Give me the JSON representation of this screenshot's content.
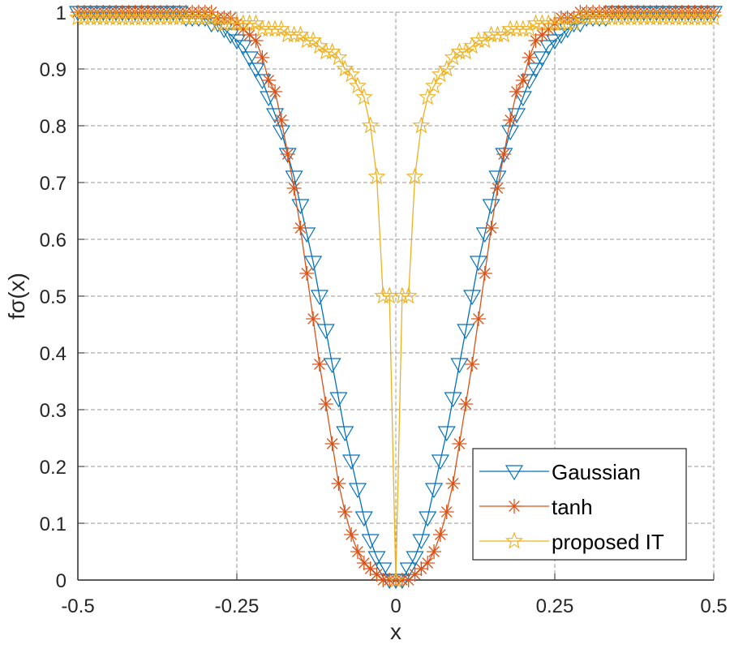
{
  "chart_data": {
    "type": "line",
    "title": "",
    "xlabel": "x",
    "ylabel": "fσ(x)",
    "xlim": [
      -0.5,
      0.5
    ],
    "ylim": [
      0,
      1
    ],
    "grid": true,
    "legend_position": "bottom-right",
    "xticks": [
      -0.5,
      -0.25,
      0,
      0.25,
      0.5
    ],
    "xtick_labels": [
      "-0.5",
      "-0.25",
      "0",
      "0.25",
      "0.5"
    ],
    "yticks": [
      0,
      0.1,
      0.2,
      0.3,
      0.4,
      0.5,
      0.6,
      0.7,
      0.8,
      0.9,
      1
    ],
    "ytick_labels": [
      "0",
      "0.1",
      "0.2",
      "0.3",
      "0.4",
      "0.5",
      "0.6",
      "0.7",
      "0.8",
      "0.9",
      "1"
    ],
    "x": [
      -0.5,
      -0.49,
      -0.48,
      -0.47,
      -0.46,
      -0.45,
      -0.44,
      -0.43,
      -0.42,
      -0.41,
      -0.4,
      -0.39,
      -0.38,
      -0.37,
      -0.36,
      -0.35,
      -0.34,
      -0.33,
      -0.32,
      -0.31,
      -0.3,
      -0.29,
      -0.28,
      -0.27,
      -0.26,
      -0.25,
      -0.24,
      -0.23,
      -0.22,
      -0.21,
      -0.2,
      -0.19,
      -0.18,
      -0.17,
      -0.16,
      -0.15,
      -0.14,
      -0.13,
      -0.12,
      -0.11,
      -0.1,
      -0.09,
      -0.08,
      -0.07,
      -0.06,
      -0.05,
      -0.04,
      -0.03,
      -0.02,
      -0.01,
      0,
      0.01,
      0.02,
      0.03,
      0.04,
      0.05,
      0.06,
      0.07,
      0.08,
      0.09,
      0.1,
      0.11,
      0.12,
      0.13,
      0.14,
      0.15,
      0.16,
      0.17,
      0.18,
      0.19,
      0.2,
      0.21,
      0.22,
      0.23,
      0.24,
      0.25,
      0.26,
      0.27,
      0.28,
      0.29,
      0.3,
      0.31,
      0.32,
      0.33,
      0.34,
      0.35,
      0.36,
      0.37,
      0.38,
      0.39,
      0.4,
      0.41,
      0.42,
      0.43,
      0.44,
      0.45,
      0.46,
      0.47,
      0.48,
      0.49,
      0.5
    ],
    "series": [
      {
        "name": "Gaussian",
        "color": "#0072BD",
        "marker": "triangle-down",
        "values": [
          1.0,
          1.0,
          1.0,
          1.0,
          1.0,
          1.0,
          1.0,
          1.0,
          1.0,
          1.0,
          1.0,
          1.0,
          1.0,
          1.0,
          1.0,
          1.0,
          1.0,
          0.99,
          0.99,
          0.99,
          0.99,
          0.98,
          0.98,
          0.97,
          0.96,
          0.95,
          0.94,
          0.92,
          0.9,
          0.88,
          0.85,
          0.82,
          0.79,
          0.75,
          0.71,
          0.66,
          0.61,
          0.56,
          0.5,
          0.44,
          0.38,
          0.32,
          0.26,
          0.21,
          0.16,
          0.11,
          0.07,
          0.04,
          0.02,
          0.0,
          0.0,
          0.0,
          0.02,
          0.04,
          0.07,
          0.11,
          0.16,
          0.21,
          0.26,
          0.32,
          0.38,
          0.44,
          0.5,
          0.56,
          0.61,
          0.66,
          0.71,
          0.75,
          0.79,
          0.82,
          0.85,
          0.88,
          0.9,
          0.92,
          0.94,
          0.95,
          0.96,
          0.97,
          0.98,
          0.98,
          0.99,
          0.99,
          0.99,
          0.99,
          1.0,
          1.0,
          1.0,
          1.0,
          1.0,
          1.0,
          1.0,
          1.0,
          1.0,
          1.0,
          1.0,
          1.0,
          1.0,
          1.0,
          1.0,
          1.0,
          1.0
        ]
      },
      {
        "name": "tanh",
        "color": "#D95319",
        "marker": "asterisk",
        "values": [
          1.0,
          1.0,
          1.0,
          1.0,
          1.0,
          1.0,
          1.0,
          1.0,
          1.0,
          1.0,
          1.0,
          1.0,
          1.0,
          1.0,
          1.0,
          1.0,
          1.0,
          1.0,
          1.0,
          1.0,
          1.0,
          1.0,
          0.99,
          0.99,
          0.99,
          0.98,
          0.97,
          0.96,
          0.95,
          0.92,
          0.88,
          0.86,
          0.81,
          0.75,
          0.69,
          0.62,
          0.54,
          0.46,
          0.38,
          0.31,
          0.24,
          0.17,
          0.12,
          0.08,
          0.05,
          0.03,
          0.02,
          0.01,
          0.0,
          0.0,
          0.0,
          0.0,
          0.0,
          0.01,
          0.02,
          0.03,
          0.05,
          0.08,
          0.12,
          0.17,
          0.24,
          0.31,
          0.38,
          0.46,
          0.54,
          0.62,
          0.69,
          0.75,
          0.81,
          0.86,
          0.88,
          0.92,
          0.95,
          0.96,
          0.97,
          0.98,
          0.99,
          0.99,
          0.99,
          1.0,
          1.0,
          1.0,
          1.0,
          1.0,
          1.0,
          1.0,
          1.0,
          1.0,
          1.0,
          1.0,
          1.0,
          1.0,
          1.0,
          1.0,
          1.0,
          1.0,
          1.0,
          1.0,
          1.0,
          1.0,
          1.0
        ]
      },
      {
        "name": "proposed IT",
        "color": "#EDB120",
        "marker": "pentagram",
        "values": [
          0.99,
          0.99,
          0.99,
          0.99,
          0.99,
          0.99,
          0.99,
          0.99,
          0.99,
          0.99,
          0.99,
          0.99,
          0.99,
          0.99,
          0.99,
          0.99,
          0.99,
          0.99,
          0.99,
          0.99,
          0.99,
          0.99,
          0.98,
          0.98,
          0.98,
          0.98,
          0.98,
          0.98,
          0.98,
          0.97,
          0.97,
          0.97,
          0.97,
          0.96,
          0.96,
          0.96,
          0.95,
          0.95,
          0.94,
          0.93,
          0.93,
          0.92,
          0.9,
          0.89,
          0.87,
          0.85,
          0.8,
          0.71,
          0.5,
          0.5,
          0.0,
          0.5,
          0.5,
          0.71,
          0.8,
          0.85,
          0.87,
          0.89,
          0.9,
          0.92,
          0.93,
          0.93,
          0.94,
          0.95,
          0.95,
          0.96,
          0.96,
          0.96,
          0.97,
          0.97,
          0.97,
          0.97,
          0.98,
          0.98,
          0.98,
          0.98,
          0.98,
          0.98,
          0.98,
          0.99,
          0.99,
          0.99,
          0.99,
          0.99,
          0.99,
          0.99,
          0.99,
          0.99,
          0.99,
          0.99,
          0.99,
          0.99,
          0.99,
          0.99,
          0.99,
          0.99,
          0.99,
          0.99,
          0.99,
          0.99,
          0.99
        ]
      }
    ]
  }
}
